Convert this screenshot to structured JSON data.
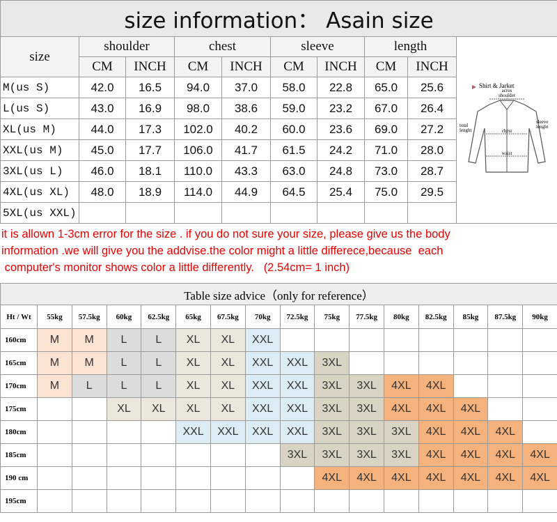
{
  "title": "size information：  Asain size",
  "size_table": {
    "size_header": "size",
    "groups": [
      "shoulder",
      "chest",
      "sleeve",
      "length"
    ],
    "units": [
      "CM",
      "INCH",
      "CM",
      "INCH",
      "CM",
      "INCH",
      "CM",
      "INCH"
    ],
    "rows": [
      {
        "size": "M(us S)",
        "values": [
          "42.0",
          "16.5",
          "94.0",
          "37.0",
          "58.0",
          "22.8",
          "65.0",
          "25.6"
        ]
      },
      {
        "size": "L(us S)",
        "values": [
          "43.0",
          "16.9",
          "98.0",
          "38.6",
          "59.0",
          "23.2",
          "67.0",
          "26.4"
        ]
      },
      {
        "size": "XL(us M)",
        "values": [
          "44.0",
          "17.3",
          "102.0",
          "40.2",
          "60.0",
          "23.6",
          "69.0",
          "27.2"
        ]
      },
      {
        "size": "XXL(us M)",
        "values": [
          "45.0",
          "17.7",
          "106.0",
          "41.7",
          "61.5",
          "24.2",
          "71.0",
          "28.0"
        ]
      },
      {
        "size": "3XL(us L)",
        "values": [
          "46.0",
          "18.1",
          "110.0",
          "43.3",
          "63.0",
          "24.8",
          "73.0",
          "28.7"
        ]
      },
      {
        "size": "4XL(us XL)",
        "values": [
          "48.0",
          "18.9",
          "114.0",
          "44.9",
          "64.5",
          "25.4",
          "75.0",
          "29.5"
        ]
      },
      {
        "size": "5XL(us XXL)",
        "values": []
      }
    ]
  },
  "diagram": {
    "title": "Shirt & Jarket",
    "labels": [
      "acros",
      "shoulder",
      "chest",
      "total",
      "lenght",
      "sleeve",
      "lenght",
      "waist"
    ]
  },
  "note": [
    "it is allown 1-3cm error for the size . if you do not sure your size, please give us the body",
    "information .we will give you the addvise.the color might a little differece,because  each",
    " computer's monitor shows color a little differently.   (2.54cm= 1 inch)"
  ],
  "advice_table": {
    "title": "Table size advice（only for reference）",
    "corner": "Ht / Wt",
    "weights": [
      "55kg",
      "57.5kg",
      "60kg",
      "62.5kg",
      "65kg",
      "67.5kg",
      "70kg",
      "72.5kg",
      "75kg",
      "77.5kg",
      "80kg",
      "82.5kg",
      "85kg",
      "87.5kg",
      "90kg"
    ],
    "heights": [
      "160cm",
      "165cm",
      "170cm",
      "175cm",
      "180cm",
      "185cm",
      "190 cm",
      "195cm"
    ],
    "cells": [
      [
        "M",
        "M",
        "L",
        "L",
        "XL",
        "XL",
        "XXL",
        null,
        null,
        null,
        null,
        null,
        null,
        null,
        null
      ],
      [
        "M",
        "M",
        "L",
        "L",
        "XL",
        "XL",
        "XXL",
        "XXL",
        "3XL",
        null,
        null,
        null,
        null,
        null,
        null
      ],
      [
        "M",
        "L",
        "L",
        "L",
        "XL",
        "XL",
        "XXL",
        "XXL",
        "3XL",
        "3XL",
        "4XL",
        "4XL",
        null,
        null,
        null
      ],
      [
        null,
        null,
        "XL",
        "XL",
        "XL",
        "XL",
        "XXL",
        "XXL",
        "3XL",
        "3XL",
        "4XL",
        "4XL",
        "4XL",
        null,
        null
      ],
      [
        null,
        null,
        null,
        null,
        "XXL",
        "XXL",
        "XXL",
        "XXL",
        "3XL",
        "3XL",
        "3XL",
        "4XL",
        "4XL",
        "4XL",
        null
      ],
      [
        null,
        null,
        null,
        null,
        null,
        null,
        null,
        "3XL",
        "3XL",
        "3XL",
        "3XL",
        "4XL",
        "4XL",
        "4XL",
        "4XL"
      ],
      [
        null,
        null,
        null,
        null,
        null,
        null,
        null,
        null,
        "4XL",
        "4XL",
        "4XL",
        "4XL",
        "4XL",
        "4XL",
        "4XL"
      ],
      [
        null,
        null,
        null,
        null,
        null,
        null,
        null,
        null,
        null,
        null,
        null,
        null,
        null,
        null,
        null
      ]
    ],
    "colors": {
      "M": "#fbe3d3",
      "L": "#dcdcdc",
      "XL": "#ece7dc",
      "XXL": "#dcecf4",
      "3XL": "#d9d3c3",
      "4XL": "#f5b27d"
    }
  }
}
